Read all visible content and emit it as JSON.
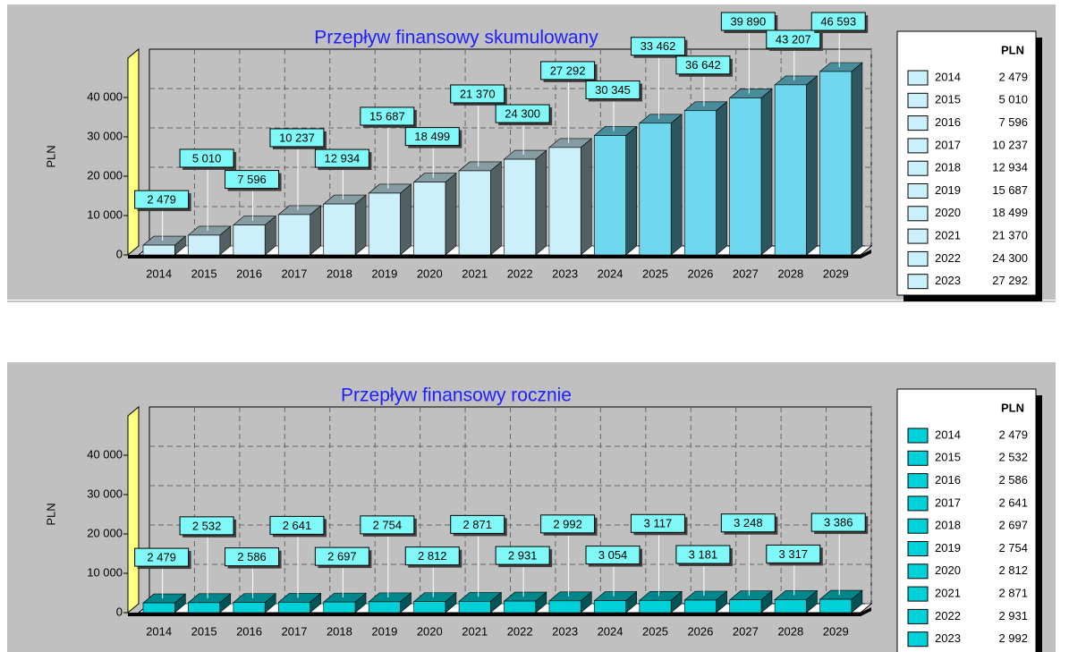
{
  "chart_data": [
    {
      "type": "bar",
      "title": "Przepływ finansowy skumulowany",
      "ylabel": "PLN",
      "legend_title": "PLN",
      "categories": [
        "2014",
        "2015",
        "2016",
        "2017",
        "2018",
        "2019",
        "2020",
        "2021",
        "2022",
        "2023",
        "2024",
        "2025",
        "2026",
        "2027",
        "2028",
        "2029"
      ],
      "values": [
        2479,
        5010,
        7596,
        10237,
        12934,
        15687,
        18499,
        21370,
        24300,
        27292,
        30345,
        33462,
        36642,
        39890,
        43207,
        46593
      ],
      "value_labels": [
        "2 479",
        "5 010",
        "7 596",
        "10 237",
        "12 934",
        "15 687",
        "18 499",
        "21 370",
        "24 300",
        "27 292",
        "30 345",
        "33 462",
        "36 642",
        "39 890",
        "43 207",
        "46 593"
      ],
      "colors": [
        "#ccf0fa",
        "#ccf0fa",
        "#ccf0fa",
        "#ccf0fa",
        "#ccf0fa",
        "#ccf0fa",
        "#ccf0fa",
        "#ccf0fa",
        "#ccf0fa",
        "#ccf0fa",
        "#70d8ee",
        "#70d8ee",
        "#70d8ee",
        "#70d8ee",
        "#70d8ee",
        "#70d8ee"
      ],
      "ylim": [
        0,
        50000
      ],
      "yticks": [
        0,
        {
          "value": 10000,
          "label": "10 000"
        },
        {
          "value": 20000,
          "label": "20 000"
        },
        {
          "value": 30000,
          "label": "30 000"
        },
        {
          "value": 40000,
          "label": "40 000"
        }
      ],
      "grid": true
    },
    {
      "type": "bar",
      "title": "Przepływ finansowy rocznie",
      "ylabel": "PLN",
      "legend_title": "PLN",
      "categories": [
        "2014",
        "2015",
        "2016",
        "2017",
        "2018",
        "2019",
        "2020",
        "2021",
        "2022",
        "2023",
        "2024",
        "2025",
        "2026",
        "2027",
        "2028",
        "2029"
      ],
      "values": [
        2479,
        2532,
        2586,
        2641,
        2697,
        2754,
        2812,
        2871,
        2931,
        2992,
        3054,
        3117,
        3181,
        3248,
        3317,
        3386
      ],
      "value_labels": [
        "2 479",
        "2 532",
        "2 586",
        "2 641",
        "2 697",
        "2 754",
        "2 812",
        "2 871",
        "2 931",
        "2 992",
        "3 054",
        "3 117",
        "3 181",
        "3 248",
        "3 317",
        "3 386"
      ],
      "color": "#00d0d8",
      "ylim": [
        0,
        50000
      ],
      "yticks": [
        0,
        {
          "value": 10000,
          "label": "10 000"
        },
        {
          "value": 20000,
          "label": "20 000"
        },
        {
          "value": 30000,
          "label": "30 000"
        },
        {
          "value": 40000,
          "label": "40 000"
        }
      ],
      "grid": true
    }
  ]
}
